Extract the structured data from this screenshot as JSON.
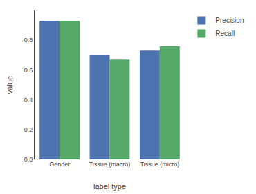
{
  "chart_data": {
    "type": "bar",
    "categories": [
      "Gender",
      "Tissue (macro)",
      "Tissue (micro)"
    ],
    "series": [
      {
        "name": "Precision",
        "color": "#4C72B0",
        "values": [
          0.93,
          0.7,
          0.73
        ]
      },
      {
        "name": "Recall",
        "color": "#55A868",
        "values": [
          0.93,
          0.67,
          0.76
        ]
      }
    ],
    "xlabel": "label type",
    "ylabel": "value",
    "ylim": [
      0.0,
      1.0
    ],
    "yticks": [
      {
        "value": 0.0,
        "label": "0.0"
      },
      0.2,
      0.4,
      0.6,
      0.8
    ],
    "grid": false,
    "legend": "right"
  }
}
